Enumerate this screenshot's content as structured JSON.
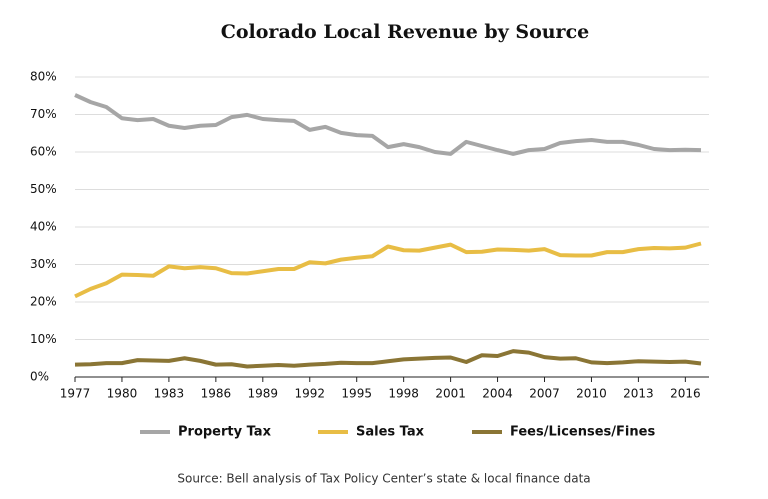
{
  "chart_data": {
    "type": "line",
    "title": "Colorado Local Revenue by Source",
    "source": "Source: Bell analysis of Tax Policy Center’s state & local finance data",
    "x": [
      1977,
      1978,
      1979,
      1980,
      1981,
      1982,
      1983,
      1984,
      1985,
      1986,
      1987,
      1988,
      1989,
      1990,
      1991,
      1992,
      1993,
      1994,
      1995,
      1996,
      1997,
      1998,
      1999,
      2000,
      2001,
      2002,
      2003,
      2004,
      2005,
      2006,
      2007,
      2008,
      2009,
      2010,
      2011,
      2012,
      2013,
      2014,
      2015,
      2016,
      2017
    ],
    "series": [
      {
        "name": "Property Tax",
        "color": "#a6a6a6",
        "values": [
          75.2,
          73.3,
          72,
          69,
          68.5,
          68.8,
          67,
          66.4,
          67,
          67.2,
          69.3,
          69.9,
          68.8,
          68.5,
          68.3,
          65.9,
          66.7,
          65.1,
          64.5,
          64.3,
          61.3,
          62.1,
          61.3,
          60,
          59.5,
          62.7,
          61.6,
          60.5,
          59.5,
          60.5,
          60.8,
          62.4,
          62.9,
          63.2,
          62.7,
          62.7,
          61.9,
          60.8,
          60.5,
          60.6,
          60.5
        ]
      },
      {
        "name": "Sales Tax",
        "color": "#e8bd45",
        "values": [
          21.5,
          23.5,
          25,
          27.3,
          27.2,
          27,
          29.5,
          29,
          29.3,
          29,
          27.7,
          27.6,
          28.2,
          28.8,
          28.8,
          30.6,
          30.3,
          31.3,
          31.8,
          32.2,
          34.8,
          33.8,
          33.7,
          34.5,
          35.3,
          33.3,
          33.4,
          34,
          33.9,
          33.7,
          34.1,
          32.5,
          32.4,
          32.4,
          33.3,
          33.3,
          34.1,
          34.4,
          34.3,
          34.5,
          35.6
        ]
      },
      {
        "name": "Fees/Licenses/Fines",
        "color": "#8a7535",
        "values": [
          3.3,
          3.4,
          3.7,
          3.7,
          4.5,
          4.4,
          4.3,
          5,
          4.3,
          3.3,
          3.4,
          2.8,
          3,
          3.2,
          3,
          3.3,
          3.5,
          3.8,
          3.7,
          3.7,
          4.2,
          4.7,
          4.9,
          5.1,
          5.2,
          4,
          5.8,
          5.6,
          6.9,
          6.5,
          5.3,
          4.9,
          5,
          3.9,
          3.7,
          3.9,
          4.2,
          4.1,
          4.0,
          4.1,
          3.6
        ]
      }
    ],
    "xlim": [
      1977,
      2017
    ],
    "xticks": [
      1977,
      1980,
      1983,
      1986,
      1989,
      1992,
      1995,
      1998,
      2001,
      2004,
      2007,
      2010,
      2013,
      2016
    ],
    "ylim": [
      0,
      80
    ],
    "yticks": [
      {
        "value": 0,
        "label": "0%"
      },
      {
        "value": 10,
        "label": "10%"
      },
      {
        "value": 20,
        "label": "20%"
      },
      {
        "value": 30,
        "label": "30%"
      },
      {
        "value": 40,
        "label": "40%"
      },
      {
        "value": 50,
        "label": "50%"
      },
      {
        "value": 60,
        "label": "60%"
      },
      {
        "value": 70,
        "label": "70%"
      },
      {
        "value": 80,
        "label": "80%"
      }
    ],
    "grid": true
  }
}
